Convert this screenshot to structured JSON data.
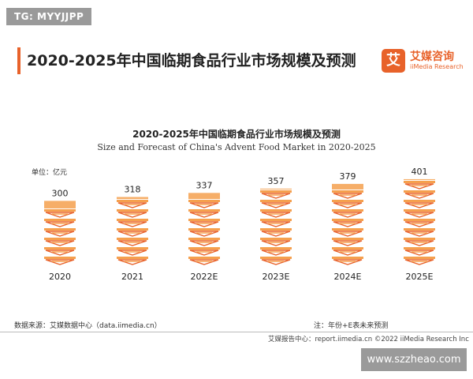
{
  "watermark_top": "TG: MYYJJPP",
  "header": {
    "title": "2020-2025年中国临期食品行业市场规模及预测",
    "logo_mark": "艾",
    "logo_cn": "艾媒咨询",
    "logo_en": "iiMedia Research"
  },
  "chart_data": {
    "type": "bar",
    "title": "2020-2025年中国临期食品行业市场规模及预测",
    "subtitle": "Size and Forecast of China's Advent Food Market in 2020-2025",
    "unit_label": "单位：亿元",
    "categories": [
      "2020",
      "2021",
      "2022E",
      "2023E",
      "2024E",
      "2025E"
    ],
    "values": [
      300,
      318,
      337,
      357,
      379,
      401
    ],
    "ylim": [
      0,
      420
    ],
    "grid": false,
    "legend": "none",
    "bar_style": "stacked-food-icons",
    "colors": {
      "bar": "#f5a04e",
      "bar_dark": "#e8622a"
    }
  },
  "footer": {
    "source": "数据来源：艾媒数据中心（data.iimedia.cn）",
    "note": "注：年份+E表未来预测",
    "report": "艾媒报告中心：report.iimedia.cn    ©2022  iiMedia Research  Inc"
  },
  "watermark_bottom": "www.szzheao.com"
}
